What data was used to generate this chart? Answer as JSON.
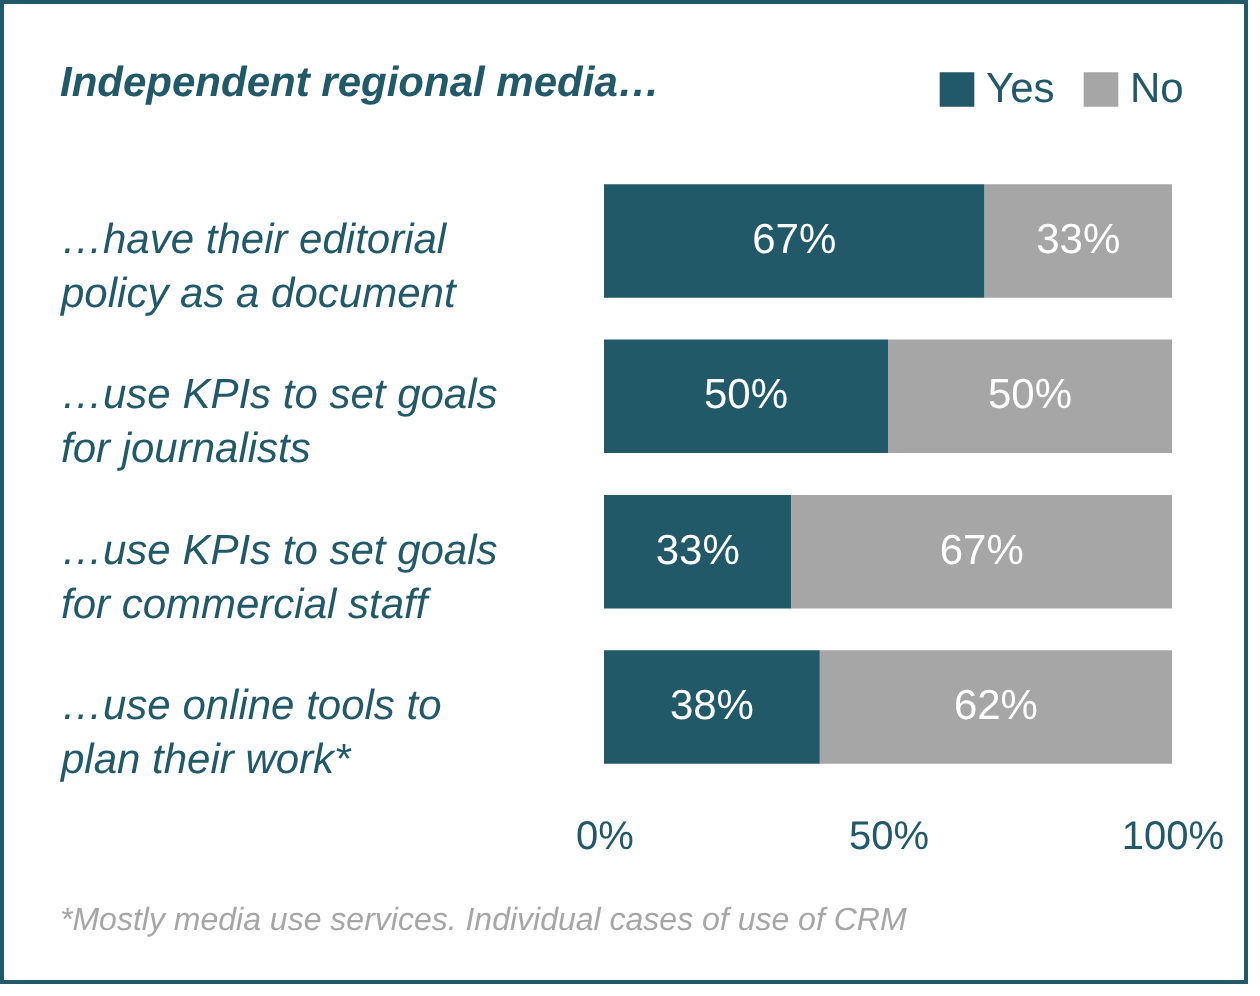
{
  "chart_data": {
    "type": "bar",
    "orientation": "horizontal",
    "stacked": true,
    "title": "Independent regional media…",
    "categories": [
      "…have their editorial policy as a document",
      "…use KPIs to set goals for journalists",
      "…use KPIs to set goals for commercial staff",
      "…use online tools to plan their work*"
    ],
    "series": [
      {
        "name": "Yes",
        "color": "#215968",
        "values": [
          0.67,
          0.5,
          0.33,
          0.38
        ],
        "value_labels": [
          "67%",
          "50%",
          "33%",
          "38%"
        ]
      },
      {
        "name": "No",
        "color": "#a6a6a6",
        "values": [
          0.33,
          0.5,
          0.67,
          0.62
        ],
        "value_labels": [
          "33%",
          "50%",
          "67%",
          "62%"
        ]
      }
    ],
    "xlim": [
      0,
      1
    ],
    "xticks": [
      {
        "value": 0,
        "label": "0%"
      },
      {
        "value": 0.5,
        "label": "50%"
      },
      {
        "value": 1,
        "label": "100%"
      }
    ],
    "grid": false,
    "legend": "top right",
    "annotations": [
      "*Mostly media use services. Individual cases of use of CRM"
    ]
  }
}
